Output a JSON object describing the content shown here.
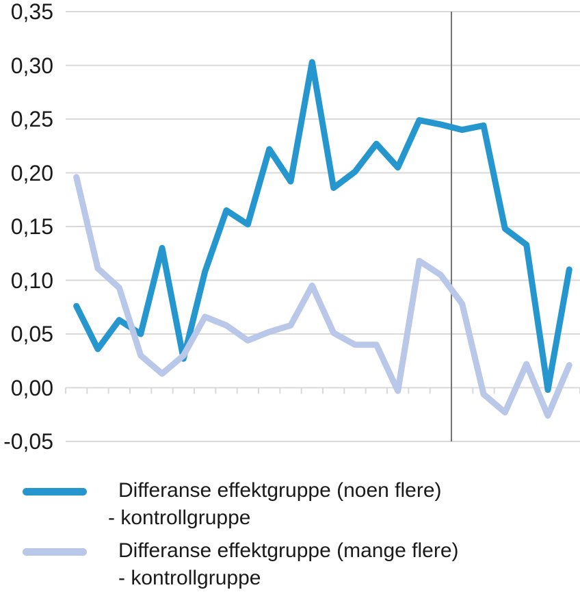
{
  "chart_data": {
    "type": "line",
    "title": "",
    "x_categories_count": 24,
    "x_tick_labels": [],
    "ylim": [
      -0.05,
      0.35
    ],
    "ytick_values": [
      0.35,
      0.3,
      0.25,
      0.2,
      0.15,
      0.1,
      0.05,
      0.0,
      -0.05
    ],
    "ytick_labels": [
      "0,35",
      "0,30",
      "0,25",
      "0,20",
      "0,15",
      "0,10",
      "0,05",
      "0,00",
      "-0,05"
    ],
    "decimal_separator": ",",
    "grid": "horizontal",
    "legend_position": "bottom",
    "series": [
      {
        "name": "Differanse effektgruppe (noen flere) - kontrollgruppe",
        "color": "#2596CE",
        "values": [
          0.076,
          0.036,
          0.063,
          0.05,
          0.13,
          0.027,
          0.108,
          0.165,
          0.152,
          0.222,
          0.192,
          0.303,
          0.186,
          0.201,
          0.227,
          0.205,
          0.249,
          0.245,
          0.24,
          0.244,
          0.148,
          0.133,
          -0.002,
          0.11
        ]
      },
      {
        "name": "Differanse effektgruppe (mange flere) - kontrollgruppe",
        "color": "#B9C7E8",
        "values": [
          0.196,
          0.111,
          0.093,
          0.03,
          0.013,
          0.03,
          0.066,
          0.058,
          0.044,
          0.052,
          0.058,
          0.095,
          0.051,
          0.04,
          0.04,
          -0.003,
          0.118,
          0.105,
          0.078,
          -0.006,
          -0.023,
          0.022,
          -0.026,
          0.021
        ]
      }
    ],
    "reference_line": {
      "orientation": "vertical",
      "at_category_boundary": 18,
      "color": "#737373"
    }
  },
  "legend": {
    "items": [
      {
        "line1": "Differanse effektgruppe (noen flere)",
        "line2": "- kontrollgruppe"
      },
      {
        "line1": "Differanse effektgruppe (mange flere)",
        "line2": "- kontrollgruppe"
      }
    ]
  },
  "colors": {
    "grid": "#D9D9D9",
    "axis_text": "#1A1A1A",
    "background": "#FFFFFF"
  }
}
